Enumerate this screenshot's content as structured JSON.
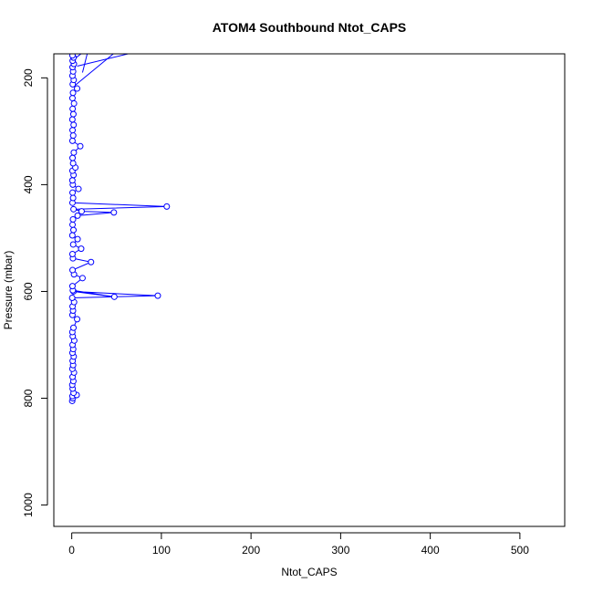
{
  "chart_data": {
    "type": "scatter",
    "title": "ATOM4 Southbound Ntot_CAPS",
    "xlabel": "Ntot_CAPS",
    "ylabel": "Pressure (mbar)",
    "xlim": [
      -20,
      550
    ],
    "ylim": [
      1040,
      155
    ],
    "y_reversed": true,
    "x_ticks": [
      0,
      100,
      200,
      300,
      400,
      500
    ],
    "y_ticks": [
      200,
      400,
      600,
      800,
      1000
    ],
    "grid": false,
    "legend": "none",
    "series_color": "#0000ff",
    "series": [
      {
        "points": [
          [
            0.5,
            805
          ],
          [
            1.2,
            800
          ],
          [
            0.8,
            796
          ],
          [
            5.5,
            794
          ],
          [
            2.0,
            790
          ],
          [
            1.0,
            782
          ],
          [
            0.6,
            775
          ],
          [
            1.8,
            768
          ],
          [
            0.9,
            760
          ],
          [
            2.5,
            752
          ],
          [
            0.7,
            745
          ],
          [
            1.5,
            738
          ],
          [
            1.0,
            730
          ],
          [
            2.2,
            722
          ],
          [
            0.8,
            715
          ],
          [
            1.6,
            708
          ],
          [
            0.9,
            700
          ],
          [
            2.8,
            692
          ],
          [
            1.1,
            684
          ],
          [
            0.7,
            676
          ],
          [
            1.9,
            668
          ],
          [
            6.0,
            652
          ],
          [
            0.8,
            644
          ],
          [
            1.4,
            636
          ],
          [
            0.9,
            628
          ],
          [
            2.6,
            620
          ],
          [
            0.5,
            612
          ],
          [
            96.0,
            608
          ],
          [
            2.0,
            600
          ],
          [
            47.5,
            610
          ],
          [
            1.2,
            598
          ],
          [
            0.8,
            590
          ],
          [
            12.0,
            575
          ],
          [
            2.5,
            568
          ],
          [
            0.9,
            560
          ],
          [
            21.5,
            545
          ],
          [
            1.3,
            538
          ],
          [
            0.8,
            530
          ],
          [
            10.5,
            520
          ],
          [
            1.6,
            512
          ],
          [
            6.5,
            502
          ],
          [
            0.7,
            495
          ],
          [
            1.9,
            485
          ],
          [
            0.9,
            475
          ],
          [
            1.4,
            465
          ],
          [
            6.5,
            458
          ],
          [
            47.0,
            452
          ],
          [
            11.0,
            450
          ],
          [
            2.0,
            446
          ],
          [
            106.0,
            441
          ],
          [
            0.8,
            434
          ],
          [
            1.5,
            425
          ],
          [
            0.9,
            415
          ],
          [
            7.5,
            408
          ],
          [
            1.2,
            400
          ],
          [
            0.7,
            392
          ],
          [
            2.0,
            382
          ],
          [
            0.8,
            374
          ],
          [
            4.0,
            368
          ],
          [
            1.5,
            360
          ],
          [
            0.9,
            350
          ],
          [
            2.3,
            340
          ],
          [
            9.5,
            328
          ],
          [
            0.8,
            318
          ],
          [
            1.6,
            308
          ],
          [
            0.9,
            298
          ],
          [
            2.1,
            288
          ],
          [
            0.7,
            278
          ],
          [
            1.8,
            268
          ],
          [
            1.0,
            258
          ],
          [
            2.5,
            248
          ],
          [
            0.8,
            238
          ],
          [
            1.4,
            228
          ],
          [
            6.0,
            220
          ],
          [
            1.1,
            212
          ],
          [
            2.2,
            204
          ],
          [
            0.8,
            196
          ],
          [
            1.5,
            188
          ],
          [
            0.9,
            180
          ],
          [
            2.4,
            174
          ],
          [
            1.0,
            168
          ],
          [
            2.0,
            162
          ],
          [
            0.8,
            158
          ]
        ],
        "offplot_segments": [
          [
            [
              12.0,
              190
            ],
            [
              18.0,
              150
            ]
          ],
          [
            [
              3.0,
              215
            ],
            [
              50.0,
              150
            ]
          ],
          [
            [
              6.0,
              178
            ],
            [
              100.0,
              140
            ]
          ],
          [
            [
              2.0,
              166
            ],
            [
              14.0,
              150
            ]
          ]
        ]
      }
    ]
  }
}
